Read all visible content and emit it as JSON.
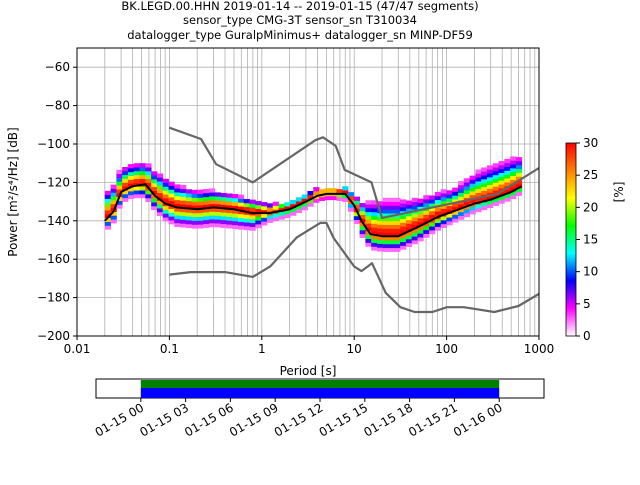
{
  "title": {
    "line1": "BK.LEGD.00.HHN   2019-01-14 -- 2019-01-15  (47/47 segments)",
    "line2": "sensor_type CMG-3T sensor_sn T310034",
    "line3": "datalogger_type GuralpMinimus+ datalogger_sn MINP-DF59"
  },
  "chart_data": [
    {
      "type": "heatmap",
      "name_hint": "PPSD",
      "xlabel": "Period [s]",
      "ylabel": "Power [m²/s⁴/Hz] [dB]",
      "xscale": "log",
      "xlim": [
        0.01,
        1000
      ],
      "ylim": [
        -200,
        -50
      ],
      "x_ticks": [
        "0.01",
        "0.1",
        "1",
        "10",
        "100",
        "1000"
      ],
      "y_ticks": [
        "−200",
        "−180",
        "−160",
        "−140",
        "−120",
        "−100",
        "−80",
        "−60"
      ],
      "grid": true,
      "colorbar": {
        "label": "[%]",
        "min": 0,
        "max": 30,
        "ticks": [
          "0",
          "5",
          "10",
          "15",
          "20",
          "25",
          "30"
        ],
        "colormap": "pqlx",
        "colors": [
          "#ffffff",
          "#ff00ff",
          "#0000ff",
          "#00ffff",
          "#00ff00",
          "#ffff00",
          "#ff8000",
          "#ff0000"
        ]
      },
      "series": [
        {
          "name": "",
          "role": "mode",
          "color": "#000000",
          "x": [
            0.02,
            0.025,
            0.03,
            0.04,
            0.055,
            0.07,
            0.09,
            0.12,
            0.2,
            0.3,
            0.5,
            0.8,
            1.2,
            2,
            3,
            4,
            5,
            6,
            8,
            10,
            12,
            15,
            20,
            30,
            50,
            80,
            120,
            200,
            300,
            500,
            650
          ],
          "y": [
            -140,
            -135,
            -125,
            -122,
            -121,
            -127,
            -131,
            -133,
            -134,
            -133,
            -134,
            -136,
            -136,
            -134,
            -130,
            -127,
            -126,
            -126,
            -126,
            -132,
            -140,
            -147,
            -148,
            -148,
            -143,
            -138,
            -135,
            -131,
            -129,
            -125,
            -122
          ]
        },
        {
          "name": "",
          "role": "NHNM",
          "color": "#666666",
          "x": [
            0.1,
            0.22,
            0.32,
            0.8,
            3.8,
            4.6,
            6.3,
            7.9,
            15.4,
            20,
            354.8,
            1000
          ],
          "y": [
            -91.5,
            -97.4,
            -110.5,
            -120,
            -98,
            -96.5,
            -101,
            -113.5,
            -120,
            -138.5,
            -126,
            -112.5
          ]
        },
        {
          "name": "",
          "role": "NLNM",
          "color": "#666666",
          "x": [
            0.1,
            0.17,
            0.4,
            0.8,
            1.24,
            2.4,
            4.3,
            5,
            6,
            10,
            12,
            15.6,
            21.9,
            31.6,
            45,
            70,
            101,
            154,
            328,
            600,
            1000
          ],
          "y": [
            -168,
            -166.7,
            -166.7,
            -169.2,
            -163.7,
            -148.6,
            -141.1,
            -141.1,
            -149,
            -163.8,
            -166.2,
            -162.1,
            -177.5,
            -185,
            -187.5,
            -187.5,
            -185,
            -185,
            -187.5,
            -184.4,
            -178
          ]
        }
      ],
      "density": {
        "x_bins": [
          0.02,
          0.025,
          0.03,
          0.04,
          0.055,
          0.07,
          0.09,
          0.12,
          0.2,
          0.3,
          0.5,
          0.8,
          1.2,
          2,
          3,
          4,
          5,
          6,
          8,
          10,
          12,
          15,
          20,
          30,
          50,
          80,
          120,
          200,
          300,
          500,
          650
        ],
        "upper_spread_db": [
          14,
          13,
          12,
          11,
          11,
          12,
          13,
          11,
          9,
          8,
          7,
          6,
          4,
          3,
          3,
          3,
          2,
          2,
          3,
          5,
          9,
          16,
          18,
          18,
          14,
          12,
          11,
          15,
          17,
          17,
          15
        ],
        "lower_spread_db": [
          6,
          6,
          6,
          6,
          7,
          8,
          9,
          10,
          10,
          10,
          10,
          9,
          5,
          4,
          4,
          3,
          3,
          3,
          4,
          6,
          8,
          8,
          8,
          8,
          8,
          7,
          6,
          5,
          4,
          4,
          4
        ]
      }
    },
    {
      "type": "bar",
      "name_hint": "data-coverage",
      "x_ticks": [
        "01-15 00",
        "01-15 03",
        "01-15 06",
        "01-15 09",
        "01-15 12",
        "01-15 15",
        "01-15 18",
        "01-15 21",
        "01-16 00"
      ],
      "xlim_hours": [
        -3,
        27
      ],
      "segments": [
        {
          "start_hour": 0,
          "end_hour": 24,
          "band": "top",
          "color": "#008000"
        },
        {
          "start_hour": 0,
          "end_hour": 24,
          "band": "bottom",
          "color": "#0000ff"
        }
      ]
    }
  ]
}
